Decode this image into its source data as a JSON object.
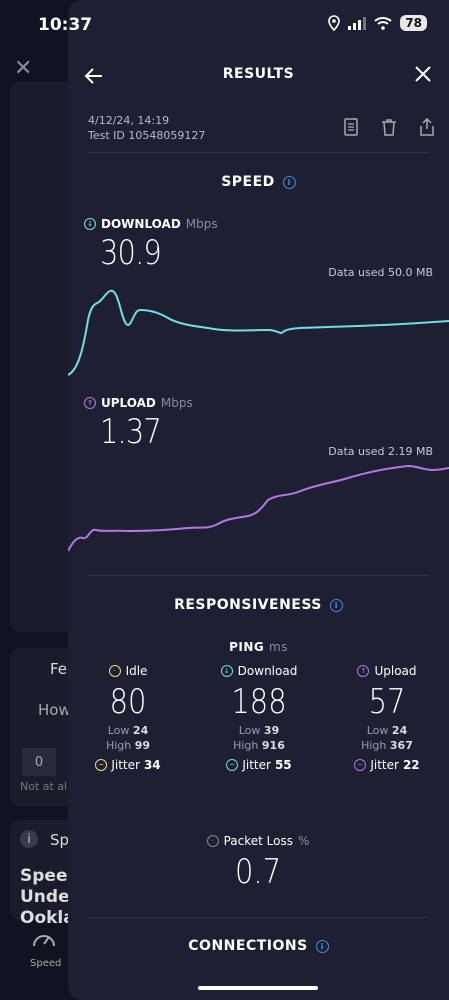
{
  "status": {
    "time": "10:37",
    "battery": "78"
  },
  "background": {
    "feedback_fragment": "Fe",
    "how_fragment": "How",
    "zero": "0",
    "not_at_all": "Not at all",
    "sp_fragment": "Sp",
    "speed_fragment": "Speed Under Ookla",
    "tab_speed": "Speed"
  },
  "header": {
    "title": "RESULTS"
  },
  "meta": {
    "date": "4/12/24, 14:19",
    "test_id": "Test ID 10548059127"
  },
  "speed": {
    "title": "SPEED",
    "download": {
      "label": "DOWNLOAD",
      "unit": "Mbps",
      "value": "30.9",
      "data_used": "Data used 50.0 MB"
    },
    "upload": {
      "label": "UPLOAD",
      "unit": "Mbps",
      "value": "1.37",
      "data_used": "Data used 2.19 MB"
    }
  },
  "responsiveness": {
    "title": "RESPONSIVENESS",
    "ping_label": "PING",
    "ping_unit": "ms",
    "idle": {
      "label": "Idle",
      "value": "80",
      "low_label": "Low",
      "low": "24",
      "high_label": "High",
      "high": "99",
      "jitter_label": "Jitter",
      "jitter": "34"
    },
    "download": {
      "label": "Download",
      "value": "188",
      "low_label": "Low",
      "low": "39",
      "high_label": "High",
      "high": "916",
      "jitter_label": "Jitter",
      "jitter": "55"
    },
    "upload": {
      "label": "Upload",
      "value": "57",
      "low_label": "Low",
      "low": "24",
      "high_label": "High",
      "high": "367",
      "jitter_label": "Jitter",
      "jitter": "22"
    },
    "packet_loss": {
      "label": "Packet Loss",
      "unit": "%",
      "value": "0.7"
    }
  },
  "connections": {
    "title": "CONNECTIONS"
  },
  "colors": {
    "download": "#6fe0e0",
    "upload": "#b07ae0",
    "idle": "#e8e07a",
    "accent": "#3b8fd9"
  }
}
